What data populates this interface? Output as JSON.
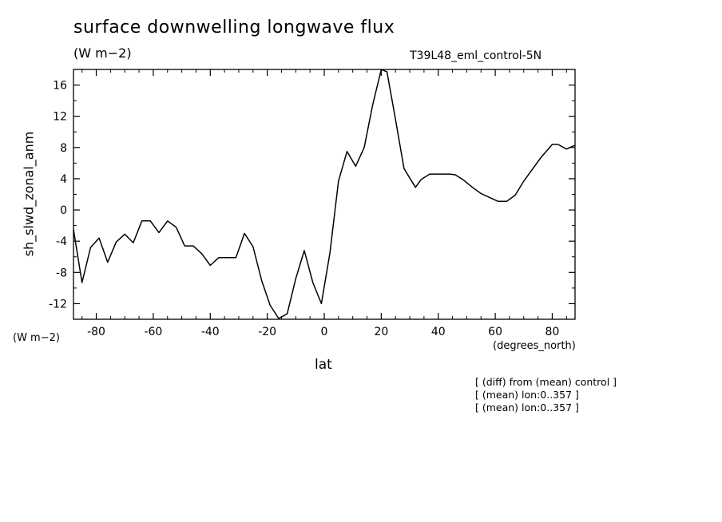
{
  "chart_data": {
    "type": "line",
    "title": "surface downwelling longwave flux",
    "units": "(W m−2)",
    "run_label": "T39L48_eml_control-5N",
    "xlabel": "lat",
    "x_units": "(degrees_north)",
    "ylabel": "sh_slwd_zonal_anm",
    "y_units": "(W m−2)",
    "xlim": [
      -88,
      88
    ],
    "ylim": [
      -14,
      18
    ],
    "xticks": [
      -80,
      -60,
      -40,
      -20,
      0,
      20,
      40,
      60,
      80
    ],
    "xtick_labels": [
      "-80",
      "-60",
      "-40",
      "-20",
      "0",
      "20",
      "40",
      "60",
      "80"
    ],
    "yticks": [
      -12,
      -8,
      -4,
      0,
      4,
      8,
      12,
      16
    ],
    "ytick_labels": [
      "-12",
      "-8",
      "-4",
      "0",
      "4",
      "8",
      "12",
      "16"
    ],
    "grid": false,
    "notes": [
      "[ (diff) from (mean) control ]",
      "[ (mean) lon:0..357 ]",
      "[ (mean) lon:0..357 ]"
    ],
    "series": [
      {
        "x": [
          -88,
          -85,
          -82,
          -79,
          -76,
          -73,
          -70,
          -67,
          -64,
          -61,
          -58,
          -55,
          -52,
          -49,
          -46,
          -43,
          -40,
          -37,
          -34,
          -31,
          -28,
          -25,
          -22,
          -19,
          -16,
          -13,
          -10,
          -7,
          -4,
          -1,
          2,
          5,
          8,
          11,
          14,
          17,
          20,
          22,
          25,
          28,
          32,
          34,
          37,
          40,
          44,
          46,
          49,
          52,
          55,
          58,
          61,
          64,
          67,
          70,
          73,
          76,
          80,
          82,
          85,
          88
        ],
        "y": [
          -2.5,
          -9.3,
          -4.8,
          -3.6,
          -6.7,
          -4.1,
          -3.1,
          -4.2,
          -1.4,
          -1.4,
          -2.9,
          -1.4,
          -2.2,
          -4.6,
          -4.6,
          -5.6,
          -7.1,
          -6.1,
          -6.1,
          -6.1,
          -3.0,
          -4.7,
          -9.0,
          -12.2,
          -13.9,
          -13.3,
          -8.8,
          -5.2,
          -9.3,
          -12.0,
          -5.5,
          3.7,
          7.5,
          5.6,
          8.0,
          13.5,
          18.0,
          17.7,
          11.6,
          5.3,
          2.9,
          3.9,
          4.6,
          4.6,
          4.6,
          4.5,
          3.8,
          2.9,
          2.1,
          1.6,
          1.1,
          1.1,
          1.9,
          3.7,
          5.2,
          6.7,
          8.4,
          8.4,
          7.8,
          8.3
        ]
      }
    ]
  }
}
